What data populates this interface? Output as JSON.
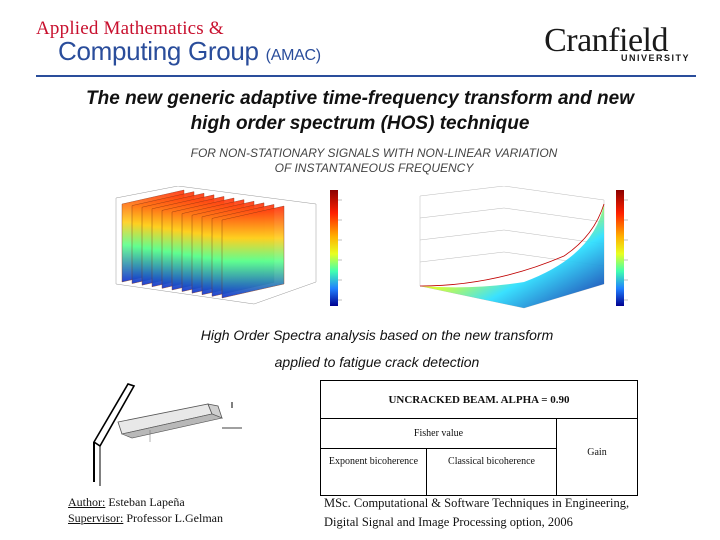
{
  "header": {
    "amac_line1": "Applied Mathematics &",
    "amac_line2": "Computing Group",
    "amac_abbrev": "(AMAC)",
    "university_word": "Cranfield",
    "university_sub": "UNIVERSITY",
    "colors": {
      "amac_red": "#c8102e",
      "amac_blue": "#2a4d9b"
    }
  },
  "title": {
    "line1": "The new generic adaptive time-frequency transform and new",
    "line2": "high order spectrum (HOS) technique"
  },
  "subtitle": {
    "line1": "FOR NON-STATIONARY SIGNALS WITH NON-LINEAR VARIATION",
    "line2": "OF INSTANTANEOUS FREQUENCY"
  },
  "spectra_caption": {
    "line1": "High Order Spectra analysis based on the new transform",
    "line2": "applied to fatigue crack detection"
  },
  "table": {
    "title": "UNCRACKED BEAM. ALPHA = 0.90",
    "fisher_header": "Fisher value",
    "col_exponent": "Exponent bicoherence",
    "col_classical": "Classical bicoherence",
    "col_gain": "Gain"
  },
  "author": {
    "author_label": "Author:",
    "author_name": "Esteban Lapeña",
    "supervisor_label": "Supervisor:",
    "supervisor_name": "Professor L.Gelman"
  },
  "footer": {
    "line1": "MSc. Computational & Software Techniques in Engineering,",
    "line2": "Digital Signal and Image Processing option, 2006"
  },
  "colors": {
    "title_text": "#111111",
    "rule": "#2a4d9b"
  }
}
